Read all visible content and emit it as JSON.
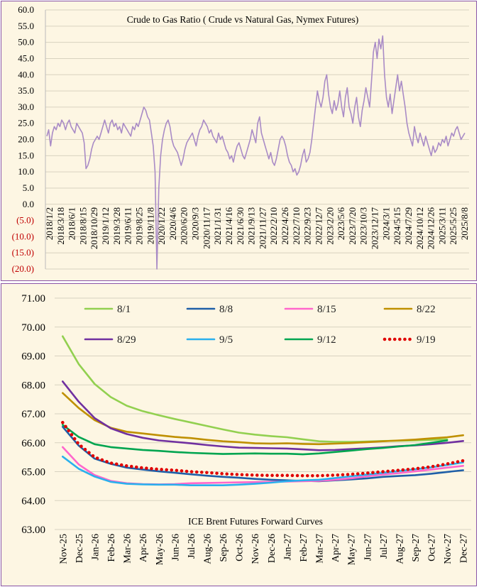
{
  "chart_data": [
    {
      "type": "line",
      "title": "Crude to Gas Ratio ( Crude vs Natural Gas, Nymex Futures)",
      "ylim": [
        -20,
        60
      ],
      "yticks": [
        "60.0",
        "55.0",
        "50.0",
        "45.0",
        "40.0",
        "35.0",
        "30.0",
        "25.0",
        "20.0",
        "15.0",
        "10.0",
        "5.0",
        "0.0",
        "(5.0)",
        "(10.0)",
        "(15.0)",
        "(20.0)"
      ],
      "ytick_values": [
        60,
        55,
        50,
        45,
        40,
        35,
        30,
        25,
        20,
        15,
        10,
        5,
        0,
        -5,
        -10,
        -15,
        -20
      ],
      "x_labels": [
        "2018/1/2",
        "2018/3/18",
        "2018/6/1",
        "2018/8/15",
        "2018/10/29",
        "2019/1/12",
        "2019/3/28",
        "2019/6/11",
        "2019/8/25",
        "2019/11/8",
        "2020/1/22",
        "2020/4/6",
        "2020/6/20",
        "2020/9/3",
        "2020/11/17",
        "2021/1/31",
        "2021/4/16",
        "2021/6/30",
        "2021/9/13",
        "2021/11/27",
        "2022/2/10",
        "2022/4/26",
        "2022/7/10",
        "2022/9/23",
        "2022/12/7",
        "2023/2/20",
        "2023/5/6",
        "2023/7/20",
        "2023/10/3",
        "2023/12/17",
        "2024/3/1",
        "2024/5/15",
        "2024/7/29",
        "2024/10/12",
        "2024/12/26",
        "2025/3/11",
        "2025/5/25",
        "2025/8/8"
      ],
      "color": "#a98bc6",
      "series": [
        {
          "name": "",
          "values": [
            21,
            23,
            18,
            22,
            24,
            23,
            25,
            24,
            26,
            25,
            23,
            25,
            26,
            24,
            23,
            22,
            25,
            24,
            23,
            22,
            19,
            11,
            12,
            14,
            17,
            19,
            20,
            21,
            20,
            22,
            24,
            26,
            24,
            22,
            25,
            26,
            24,
            25,
            23,
            24,
            22,
            25,
            24,
            23,
            22,
            21,
            24,
            23,
            25,
            24,
            26,
            28,
            30,
            29,
            27,
            26,
            22,
            18,
            10,
            -20,
            5,
            15,
            20,
            23,
            25,
            26,
            24,
            20,
            18,
            17,
            16,
            14,
            12,
            14,
            17,
            19,
            20,
            21,
            22,
            20,
            18,
            21,
            23,
            24,
            26,
            25,
            24,
            22,
            23,
            21,
            20,
            19,
            22,
            20,
            21,
            19,
            17,
            16,
            14,
            15,
            13,
            16,
            18,
            19,
            17,
            15,
            14,
            16,
            18,
            20,
            23,
            21,
            19,
            25,
            27,
            22,
            20,
            18,
            16,
            14,
            16,
            13,
            12,
            14,
            17,
            20,
            21,
            20,
            18,
            15,
            13,
            12,
            10,
            11,
            9,
            10,
            12,
            15,
            17,
            13,
            14,
            16,
            20,
            25,
            30,
            35,
            32,
            30,
            33,
            38,
            40,
            34,
            30,
            28,
            32,
            29,
            31,
            35,
            30,
            27,
            33,
            36,
            30,
            28,
            25,
            30,
            33,
            27,
            24,
            29,
            32,
            36,
            33,
            30,
            38,
            47,
            50,
            45,
            51,
            48,
            52,
            40,
            33,
            30,
            34,
            28,
            32,
            36,
            40,
            35,
            38,
            34,
            30,
            25,
            22,
            20,
            18,
            24,
            21,
            19,
            22,
            20,
            18,
            21,
            19,
            17,
            15,
            18,
            16,
            17,
            19,
            18,
            20,
            19,
            21,
            18,
            20,
            22,
            21,
            23,
            24,
            22,
            20,
            21,
            22
          ]
        }
      ]
    },
    {
      "type": "line",
      "title": "ICE Brent Futures Forward Curves",
      "ylim": [
        63,
        71
      ],
      "yticks": [
        "71.00",
        "70.00",
        "69.00",
        "68.00",
        "67.00",
        "66.00",
        "65.00",
        "64.00",
        "63.00"
      ],
      "ytick_values": [
        71,
        70,
        69,
        68,
        67,
        66,
        65,
        64,
        63
      ],
      "categories": [
        "Nov-25",
        "Dec-25",
        "Jan-26",
        "Feb-26",
        "Mar-26",
        "Apr-26",
        "May-26",
        "Jun-26",
        "Jul-26",
        "Aug-26",
        "Sep-26",
        "Oct-26",
        "Nov-26",
        "Dec-26",
        "Jan-27",
        "Feb-27",
        "Mar-27",
        "Apr-27",
        "May-27",
        "Jun-27",
        "Jul-27",
        "Aug-27",
        "Sep-27",
        "Oct-27",
        "Nov-27",
        "Dec-27"
      ],
      "series": [
        {
          "name": "8/1",
          "color": "#92d050",
          "style": "solid",
          "values": [
            69.68,
            68.72,
            68.03,
            67.58,
            67.28,
            67.09,
            66.95,
            66.82,
            66.7,
            66.58,
            66.46,
            66.35,
            66.28,
            66.23,
            66.19,
            66.12,
            66.05,
            66.03,
            66.03,
            66.04,
            66.06,
            66.07,
            66.08,
            66.1,
            66.12,
            null
          ]
        },
        {
          "name": "8/8",
          "color": "#1f5fa8",
          "style": "solid",
          "values": [
            66.55,
            65.9,
            65.45,
            65.27,
            65.14,
            65.07,
            65.01,
            64.96,
            64.91,
            64.86,
            64.82,
            64.79,
            64.75,
            64.72,
            64.7,
            64.68,
            64.67,
            64.7,
            64.73,
            64.77,
            64.82,
            64.85,
            64.88,
            64.93,
            64.99,
            65.05
          ]
        },
        {
          "name": "8/15",
          "color": "#ff66cc",
          "style": "solid",
          "values": [
            65.85,
            65.25,
            64.88,
            64.68,
            64.6,
            64.57,
            64.56,
            64.57,
            64.6,
            64.61,
            64.62,
            64.63,
            64.64,
            64.65,
            64.66,
            64.67,
            64.68,
            64.72,
            64.77,
            64.84,
            64.9,
            64.95,
            65.01,
            65.07,
            65.14,
            65.2
          ]
        },
        {
          "name": "8/22",
          "color": "#bf9000",
          "style": "solid",
          "values": [
            67.72,
            67.2,
            66.78,
            66.52,
            66.38,
            66.32,
            66.26,
            66.2,
            66.16,
            66.1,
            66.05,
            66.02,
            65.98,
            65.97,
            65.98,
            65.96,
            65.95,
            65.97,
            65.99,
            66.02,
            66.05,
            66.08,
            66.11,
            66.15,
            66.19,
            66.26
          ]
        },
        {
          "name": "8/29",
          "color": "#7030a0",
          "style": "solid",
          "values": [
            68.12,
            67.42,
            66.85,
            66.5,
            66.3,
            66.17,
            66.08,
            66.03,
            65.98,
            65.92,
            65.87,
            65.83,
            65.82,
            65.81,
            65.8,
            65.77,
            65.74,
            65.75,
            65.78,
            65.81,
            65.84,
            65.88,
            65.91,
            65.95,
            66.0,
            66.06
          ]
        },
        {
          "name": "9/5",
          "color": "#2ab0ed",
          "style": "solid",
          "values": [
            65.52,
            65.1,
            64.83,
            64.65,
            64.58,
            64.56,
            64.55,
            64.55,
            64.53,
            64.53,
            64.53,
            64.55,
            64.58,
            64.62,
            64.67,
            64.7,
            64.72,
            64.78,
            64.84,
            64.9,
            64.96,
            65.02,
            65.08,
            65.15,
            65.23,
            65.32
          ]
        },
        {
          "name": "9/12",
          "color": "#00a550",
          "style": "solid",
          "values": [
            66.62,
            66.2,
            65.95,
            65.85,
            65.8,
            65.75,
            65.72,
            65.68,
            65.65,
            65.63,
            65.61,
            65.62,
            65.63,
            65.62,
            65.62,
            65.6,
            65.63,
            65.68,
            65.73,
            65.78,
            65.82,
            65.87,
            65.92,
            66.0,
            66.08,
            null
          ]
        },
        {
          "name": "9/19",
          "color": "#e00000",
          "style": "dotted",
          "values": [
            66.7,
            65.95,
            65.5,
            65.3,
            65.2,
            65.13,
            65.08,
            65.05,
            65.0,
            64.97,
            64.93,
            64.9,
            64.88,
            64.87,
            64.87,
            64.86,
            64.86,
            64.88,
            64.91,
            64.95,
            65.0,
            65.05,
            65.1,
            65.17,
            65.27,
            65.38
          ]
        }
      ]
    }
  ]
}
